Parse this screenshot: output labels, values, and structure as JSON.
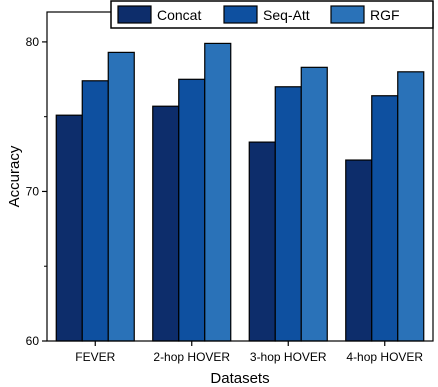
{
  "chart_data": {
    "type": "bar",
    "categories": [
      "FEVER",
      "2-hop HOVER",
      "3-hop HOVER",
      "4-hop HOVER"
    ],
    "series": [
      {
        "name": "Concat",
        "values": [
          75.1,
          75.7,
          73.3,
          72.1
        ],
        "color": "#0d2d6b"
      },
      {
        "name": "Seq-Att",
        "values": [
          77.4,
          77.5,
          77.0,
          76.4
        ],
        "color": "#0e50a0"
      },
      {
        "name": "RGF",
        "values": [
          79.3,
          79.9,
          78.3,
          78.0
        ],
        "color": "#2a72b8"
      }
    ],
    "xlabel": "Datasets",
    "ylabel": "Accuracy",
    "ylim": [
      60,
      82
    ],
    "yticks": [
      60,
      70,
      80
    ],
    "legend_position": "top-right",
    "grid": false
  }
}
